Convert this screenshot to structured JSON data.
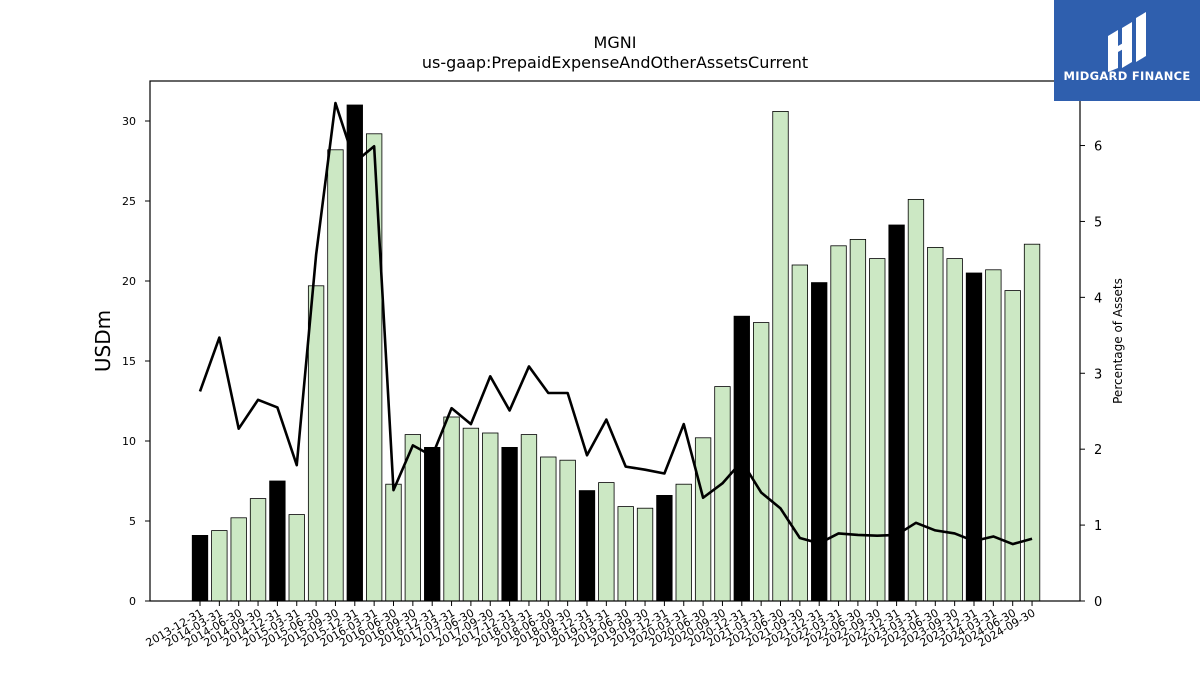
{
  "chart_data": {
    "type": "bar+line",
    "title": "MGNI",
    "subtitle": "us-gaap:PrepaidExpenseAndOtherAssetsCurrent",
    "ylabel_left": "USDm",
    "ylabel_right": "Percentage of Assets",
    "ylim_left": [
      0,
      32.5
    ],
    "ylim_right": [
      0,
      6.85
    ],
    "yticks_left": [
      0,
      5,
      10,
      15,
      20,
      25,
      30
    ],
    "yticks_right": [
      0,
      1,
      2,
      3,
      4,
      5,
      6
    ],
    "grid": false,
    "categories": [
      "2013-12-31",
      "2014-03-31",
      "2014-06-30",
      "2014-09-30",
      "2014-12-31",
      "2015-03-31",
      "2015-06-30",
      "2015-09-30",
      "2015-12-31",
      "2016-03-31",
      "2016-06-30",
      "2016-09-30",
      "2016-12-31",
      "2017-03-31",
      "2017-06-30",
      "2017-09-30",
      "2017-12-31",
      "2018-03-31",
      "2018-06-30",
      "2018-09-30",
      "2018-12-31",
      "2019-03-31",
      "2019-06-30",
      "2019-09-30",
      "2019-12-31",
      "2020-03-31",
      "2020-06-30",
      "2020-09-30",
      "2020-12-31",
      "2021-03-31",
      "2021-06-30",
      "2021-09-30",
      "2021-12-31",
      "2022-03-31",
      "2022-06-30",
      "2022-09-30",
      "2022-12-31",
      "2023-03-31",
      "2023-06-30",
      "2023-09-30",
      "2023-12-31",
      "2024-03-31",
      "2024-06-30",
      "2024-09-30"
    ],
    "bars": {
      "name": "USDm",
      "values": [
        4.1,
        4.4,
        5.2,
        6.4,
        7.5,
        5.4,
        19.7,
        28.2,
        31.0,
        29.2,
        7.3,
        10.4,
        9.6,
        11.5,
        10.8,
        10.5,
        9.6,
        10.4,
        9.0,
        8.8,
        6.9,
        7.4,
        5.9,
        5.8,
        6.6,
        7.3,
        10.2,
        13.4,
        17.8,
        17.4,
        30.6,
        21.0,
        19.9,
        22.2,
        22.6,
        21.4,
        23.5,
        25.1,
        22.1,
        21.4,
        20.5,
        20.7,
        19.4,
        22.3
      ],
      "fiscal_year_end": [
        true,
        false,
        false,
        false,
        true,
        false,
        false,
        false,
        true,
        false,
        false,
        false,
        true,
        false,
        false,
        false,
        true,
        false,
        false,
        false,
        true,
        false,
        false,
        false,
        true,
        false,
        false,
        false,
        true,
        false,
        false,
        false,
        true,
        false,
        false,
        false,
        true,
        false,
        false,
        false,
        true,
        false,
        false,
        false
      ],
      "color_quarter": "#cce8c4",
      "color_year_end": "#000000"
    },
    "line": {
      "name": "Percentage of Assets",
      "values": [
        2.76,
        3.47,
        2.27,
        2.65,
        2.55,
        1.79,
        4.56,
        6.56,
        5.78,
        5.99,
        1.46,
        2.05,
        1.91,
        2.54,
        2.33,
        2.96,
        2.51,
        3.09,
        2.74,
        2.74,
        1.92,
        2.39,
        1.77,
        1.73,
        1.68,
        2.33,
        1.36,
        1.55,
        1.84,
        1.43,
        1.22,
        0.83,
        0.76,
        0.89,
        0.87,
        0.86,
        0.87,
        1.03,
        0.93,
        0.89,
        0.79,
        0.85,
        0.75,
        0.82
      ],
      "color": "#000000"
    }
  },
  "logo": {
    "text": "MIDGARD FINANCE",
    "color": "#2f5fae"
  }
}
